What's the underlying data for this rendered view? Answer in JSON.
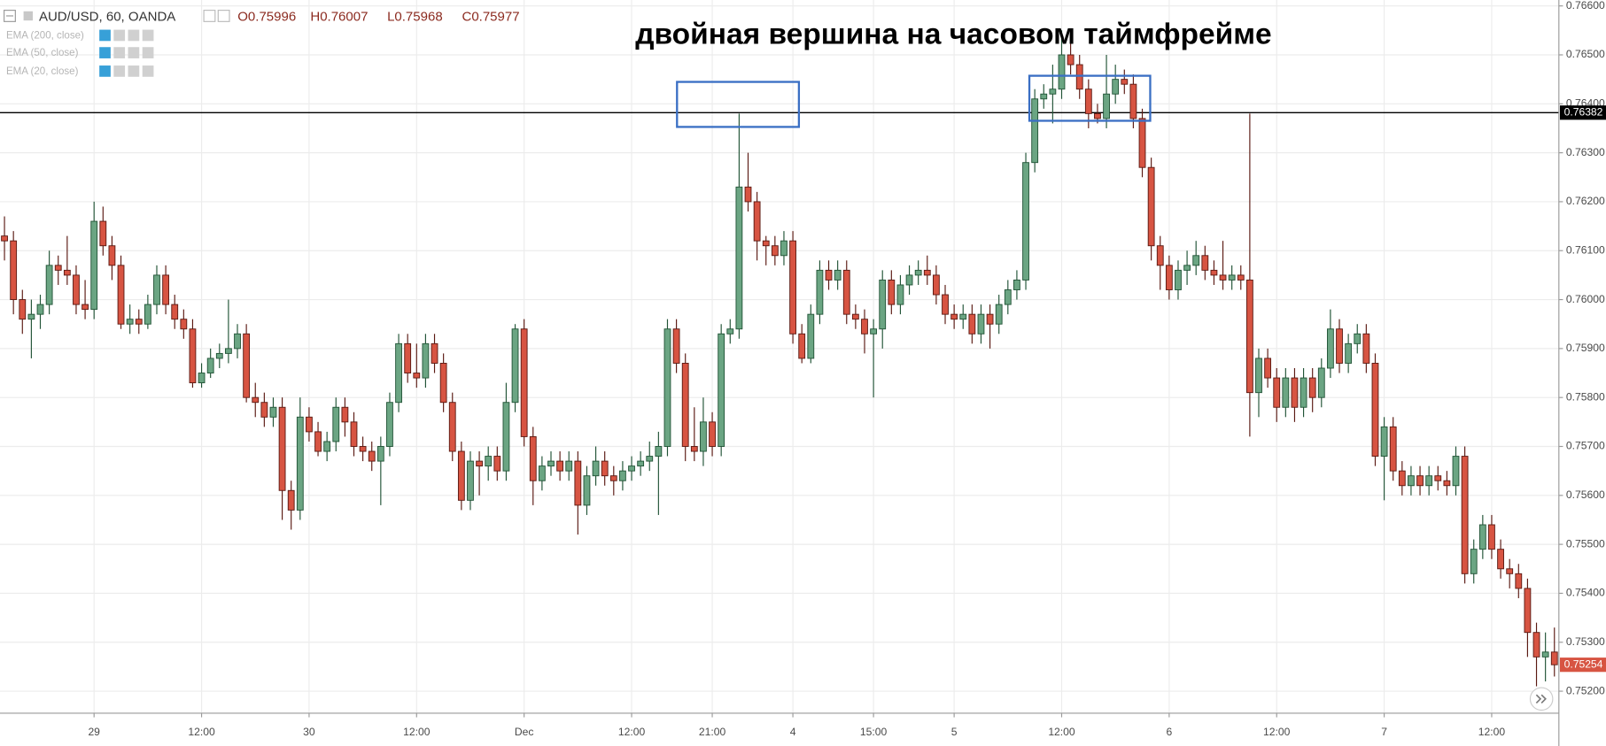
{
  "chart_data": {
    "type": "candlestick",
    "title": "двойная вершина на часовом таймфрейме",
    "header": {
      "symbol": "AUD/USD, 60, OANDA",
      "values": [
        "O0.75996",
        "H0.76007",
        "L0.75968",
        "C0.75977"
      ]
    },
    "indicators": [
      "EMA (200, close)",
      "EMA (50, close)",
      "EMA (20, close)"
    ],
    "categories": [
      null,
      null,
      null,
      null,
      null,
      null,
      null,
      null,
      null,
      null,
      "29",
      null,
      null,
      null,
      null,
      null,
      null,
      null,
      null,
      null,
      null,
      null,
      "12:00",
      null,
      null,
      null,
      null,
      null,
      null,
      null,
      null,
      null,
      null,
      null,
      "30",
      null,
      null,
      null,
      null,
      null,
      null,
      null,
      null,
      null,
      null,
      null,
      "12:00",
      null,
      null,
      null,
      null,
      null,
      null,
      null,
      null,
      null,
      null,
      null,
      "Dec",
      null,
      null,
      null,
      null,
      null,
      null,
      null,
      null,
      null,
      null,
      null,
      "12:00",
      null,
      null,
      null,
      null,
      null,
      null,
      null,
      null,
      "21:00",
      null,
      null,
      null,
      null,
      null,
      null,
      null,
      null,
      "4",
      null,
      null,
      null,
      null,
      null,
      null,
      null,
      null,
      "15:00",
      null,
      null,
      null,
      null,
      null,
      null,
      null,
      null,
      "5",
      null,
      null,
      null,
      null,
      null,
      null,
      null,
      null,
      null,
      null,
      null,
      "12:00",
      null,
      null,
      null,
      null,
      null,
      null,
      null,
      null,
      null,
      null,
      null,
      "6",
      null,
      null,
      null,
      null,
      null,
      null,
      null,
      null,
      null,
      null,
      null,
      "12:00",
      null,
      null,
      null,
      null,
      null,
      null,
      null,
      null,
      null,
      null,
      null,
      "7",
      null,
      null,
      null,
      null,
      null,
      null,
      null,
      null,
      null,
      null,
      null,
      "12:00",
      null,
      null,
      null,
      null,
      null,
      null,
      null
    ],
    "open": [
      0.7613,
      0.7612,
      0.76,
      0.7596,
      0.7597,
      0.7599,
      0.7607,
      0.7606,
      0.7605,
      0.7599,
      0.7598,
      0.7616,
      0.7611,
      0.7607,
      0.7595,
      0.7596,
      0.7595,
      0.7599,
      0.7605,
      0.7599,
      0.7596,
      0.7594,
      0.7583,
      0.7585,
      0.7588,
      0.7589,
      0.759,
      0.7593,
      0.758,
      0.7579,
      0.7576,
      0.7578,
      0.7561,
      0.7557,
      0.7576,
      0.7573,
      0.7569,
      0.7571,
      0.7578,
      0.7575,
      0.757,
      0.7569,
      0.7567,
      0.757,
      0.7579,
      0.7591,
      0.7585,
      0.7584,
      0.7591,
      0.7587,
      0.7579,
      0.7569,
      0.7559,
      0.7567,
      0.7566,
      0.7568,
      0.7565,
      0.7579,
      0.7594,
      0.7572,
      0.7563,
      0.7566,
      0.7567,
      0.7565,
      0.7567,
      0.7558,
      0.7564,
      0.7567,
      0.7564,
      0.7563,
      0.7565,
      0.7566,
      0.7567,
      0.7568,
      0.757,
      0.7594,
      0.7587,
      0.757,
      0.7569,
      0.7575,
      0.757,
      0.7593,
      0.7594,
      0.7623,
      0.762,
      0.7612,
      0.7611,
      0.7609,
      0.7612,
      0.7593,
      0.7588,
      0.7597,
      0.7606,
      0.7604,
      0.7606,
      0.7597,
      0.7596,
      0.7593,
      0.7594,
      0.7604,
      0.7599,
      0.7603,
      0.7605,
      0.7606,
      0.7605,
      0.7601,
      0.7597,
      0.7596,
      0.7597,
      0.7593,
      0.7597,
      0.7595,
      0.7599,
      0.7602,
      0.7604,
      0.7628,
      0.7641,
      0.7642,
      0.7643,
      0.765,
      0.7648,
      0.7643,
      0.7638,
      0.7637,
      0.7642,
      0.7645,
      0.7644,
      0.7637,
      0.7627,
      0.7611,
      0.7607,
      0.7602,
      0.7606,
      0.7607,
      0.7609,
      0.7606,
      0.7605,
      0.7604,
      0.7605,
      0.7604,
      0.7581,
      0.7588,
      0.7584,
      0.7578,
      0.7584,
      0.7578,
      0.7584,
      0.758,
      0.7586,
      0.7594,
      0.7587,
      0.7591,
      0.7593,
      0.7587,
      0.7568,
      0.7574,
      0.7565,
      0.7562,
      0.7564,
      0.7562,
      0.7564,
      0.7563,
      0.7562,
      0.7568,
      0.7544,
      0.7549,
      0.7554,
      0.7549,
      0.7545,
      0.7544,
      0.7541,
      0.7532,
      0.7527,
      0.7528
    ],
    "high": [
      0.7617,
      0.7614,
      0.7602,
      0.76,
      0.7601,
      0.761,
      0.7609,
      0.7613,
      0.7607,
      0.7604,
      0.762,
      0.7619,
      0.7613,
      0.7609,
      0.7599,
      0.7598,
      0.7601,
      0.7607,
      0.7607,
      0.7601,
      0.7598,
      0.7596,
      0.7587,
      0.759,
      0.7591,
      0.76,
      0.7595,
      0.7595,
      0.7583,
      0.7581,
      0.758,
      0.758,
      0.7563,
      0.758,
      0.7578,
      0.7575,
      0.7573,
      0.758,
      0.758,
      0.7577,
      0.7572,
      0.7571,
      0.7572,
      0.7581,
      0.7593,
      0.7593,
      0.7591,
      0.7593,
      0.7593,
      0.7589,
      0.7581,
      0.7571,
      0.7569,
      0.7569,
      0.757,
      0.757,
      0.7583,
      0.7595,
      0.7596,
      0.7574,
      0.7568,
      0.7569,
      0.7569,
      0.7569,
      0.7569,
      0.7566,
      0.757,
      0.7569,
      0.7566,
      0.7567,
      0.7568,
      0.7569,
      0.7571,
      0.7573,
      0.7596,
      0.7596,
      0.7589,
      0.7578,
      0.758,
      0.7577,
      0.7595,
      0.7596,
      0.7638,
      0.763,
      0.7622,
      0.7613,
      0.7613,
      0.7614,
      0.7614,
      0.7595,
      0.7599,
      0.7608,
      0.7608,
      0.7608,
      0.7608,
      0.7599,
      0.7598,
      0.7596,
      0.7606,
      0.7606,
      0.7605,
      0.7607,
      0.7608,
      0.7609,
      0.7607,
      0.7603,
      0.7599,
      0.7599,
      0.7599,
      0.7599,
      0.7599,
      0.7601,
      0.7604,
      0.7606,
      0.763,
      0.7643,
      0.7644,
      0.7648,
      0.7655,
      0.7654,
      0.765,
      0.7645,
      0.764,
      0.765,
      0.7648,
      0.7647,
      0.7646,
      0.7639,
      0.7629,
      0.7613,
      0.7609,
      0.7608,
      0.761,
      0.7612,
      0.7611,
      0.7608,
      0.7612,
      0.7607,
      0.7607,
      0.7638,
      0.759,
      0.759,
      0.7586,
      0.7586,
      0.7586,
      0.7586,
      0.7586,
      0.7588,
      0.7598,
      0.7596,
      0.7593,
      0.7595,
      0.7595,
      0.7589,
      0.7576,
      0.7576,
      0.7567,
      0.7566,
      0.7566,
      0.7566,
      0.7566,
      0.7565,
      0.757,
      0.757,
      0.7551,
      0.7556,
      0.7556,
      0.7551,
      0.7547,
      0.7546,
      0.7543,
      0.7534,
      0.7532,
      0.7533
    ],
    "low": [
      0.7608,
      0.7597,
      0.7593,
      0.7588,
      0.7594,
      0.7597,
      0.7603,
      0.7603,
      0.7597,
      0.7596,
      0.7596,
      0.7609,
      0.7604,
      0.7594,
      0.7593,
      0.7593,
      0.7594,
      0.7597,
      0.7597,
      0.7594,
      0.7592,
      0.7582,
      0.7582,
      0.7584,
      0.7586,
      0.7587,
      0.7588,
      0.7579,
      0.7576,
      0.7574,
      0.7574,
      0.7555,
      0.7553,
      0.7555,
      0.7571,
      0.7568,
      0.7567,
      0.7569,
      0.7572,
      0.7568,
      0.7567,
      0.7565,
      0.7558,
      0.7568,
      0.7577,
      0.7583,
      0.7582,
      0.7582,
      0.7585,
      0.7577,
      0.7567,
      0.7557,
      0.7557,
      0.756,
      0.7563,
      0.7563,
      0.7563,
      0.7577,
      0.757,
      0.7558,
      0.7561,
      0.7564,
      0.7563,
      0.7563,
      0.7552,
      0.7556,
      0.7562,
      0.7562,
      0.756,
      0.7561,
      0.7563,
      0.7564,
      0.7565,
      0.7556,
      0.7568,
      0.7585,
      0.7567,
      0.7567,
      0.7566,
      0.7568,
      0.7568,
      0.7591,
      0.7592,
      0.7618,
      0.7608,
      0.7607,
      0.7607,
      0.7607,
      0.7591,
      0.7587,
      0.7587,
      0.7595,
      0.7602,
      0.7602,
      0.7595,
      0.7594,
      0.7589,
      0.758,
      0.759,
      0.7597,
      0.7597,
      0.7601,
      0.7603,
      0.7603,
      0.7599,
      0.7595,
      0.7594,
      0.7594,
      0.7591,
      0.7591,
      0.759,
      0.7593,
      0.7597,
      0.76,
      0.7602,
      0.7626,
      0.7639,
      0.7636,
      0.7641,
      0.7646,
      0.7641,
      0.7635,
      0.7636,
      0.7635,
      0.764,
      0.7642,
      0.7635,
      0.7625,
      0.7608,
      0.7602,
      0.76,
      0.76,
      0.7603,
      0.7605,
      0.7604,
      0.7603,
      0.7602,
      0.7602,
      0.7602,
      0.7572,
      0.7576,
      0.7582,
      0.7575,
      0.7576,
      0.7575,
      0.7576,
      0.7577,
      0.7578,
      0.7584,
      0.7585,
      0.7585,
      0.7589,
      0.7585,
      0.7566,
      0.7559,
      0.7563,
      0.756,
      0.756,
      0.756,
      0.756,
      0.7561,
      0.756,
      0.756,
      0.7542,
      0.7542,
      0.7547,
      0.7547,
      0.7543,
      0.7541,
      0.7539,
      0.7527,
      0.7521,
      0.7522,
      0.7523
    ],
    "close": [
      0.7612,
      0.76,
      0.7596,
      0.7597,
      0.7599,
      0.7607,
      0.7606,
      0.7605,
      0.7599,
      0.7598,
      0.7616,
      0.7611,
      0.7607,
      0.7595,
      0.7596,
      0.7595,
      0.7599,
      0.7605,
      0.7599,
      0.7596,
      0.7594,
      0.7583,
      0.7585,
      0.7588,
      0.7589,
      0.759,
      0.7593,
      0.758,
      0.7579,
      0.7576,
      0.7578,
      0.7561,
      0.7557,
      0.7576,
      0.7573,
      0.7569,
      0.7571,
      0.7578,
      0.7575,
      0.757,
      0.7569,
      0.7567,
      0.757,
      0.7579,
      0.7591,
      0.7585,
      0.7584,
      0.7591,
      0.7587,
      0.7579,
      0.7569,
      0.7559,
      0.7567,
      0.7566,
      0.7568,
      0.7565,
      0.7579,
      0.7594,
      0.7572,
      0.7563,
      0.7566,
      0.7567,
      0.7565,
      0.7567,
      0.7558,
      0.7564,
      0.7567,
      0.7564,
      0.7563,
      0.7565,
      0.7566,
      0.7567,
      0.7568,
      0.757,
      0.7594,
      0.7587,
      0.757,
      0.7569,
      0.7575,
      0.757,
      0.7593,
      0.7594,
      0.7623,
      0.762,
      0.7612,
      0.7611,
      0.7609,
      0.7612,
      0.7593,
      0.7588,
      0.7597,
      0.7606,
      0.7604,
      0.7606,
      0.7597,
      0.7596,
      0.7593,
      0.7594,
      0.7604,
      0.7599,
      0.7603,
      0.7605,
      0.7606,
      0.7605,
      0.7601,
      0.7597,
      0.7596,
      0.7597,
      0.7593,
      0.7597,
      0.7595,
      0.7599,
      0.7602,
      0.7604,
      0.7628,
      0.7641,
      0.7642,
      0.7643,
      0.765,
      0.7648,
      0.7643,
      0.7638,
      0.7637,
      0.7642,
      0.7645,
      0.7644,
      0.7637,
      0.7627,
      0.7611,
      0.7607,
      0.7602,
      0.7606,
      0.7607,
      0.7609,
      0.7606,
      0.7605,
      0.7604,
      0.7605,
      0.7604,
      0.7581,
      0.7588,
      0.7584,
      0.7578,
      0.7584,
      0.7578,
      0.7584,
      0.758,
      0.7586,
      0.7594,
      0.7587,
      0.7591,
      0.7593,
      0.7587,
      0.7568,
      0.7574,
      0.7565,
      0.7562,
      0.7564,
      0.7562,
      0.7564,
      0.7563,
      0.7562,
      0.7568,
      0.7544,
      0.7549,
      0.7554,
      0.7549,
      0.7545,
      0.7544,
      0.7541,
      0.7532,
      0.7527,
      0.7528,
      0.75254
    ],
    "colors": {
      "up": "#6ba583",
      "down": "#d75442",
      "up_border": "#225437",
      "down_border": "#5b1a13"
    },
    "ylim": [
      0.75155,
      0.76612
    ],
    "yticks": [
      {
        "value": 0.752,
        "label": "0.75200"
      },
      {
        "value": 0.753,
        "label": "0.75300"
      },
      {
        "value": 0.754,
        "label": "0.75400"
      },
      {
        "value": 0.755,
        "label": "0.75500"
      },
      {
        "value": 0.756,
        "label": "0.75600"
      },
      {
        "value": 0.757,
        "label": "0.75700"
      },
      {
        "value": 0.758,
        "label": "0.75800"
      },
      {
        "value": 0.759,
        "label": "0.75900"
      },
      {
        "value": 0.76,
        "label": "0.76000"
      },
      {
        "value": 0.761,
        "label": "0.76100"
      },
      {
        "value": 0.762,
        "label": "0.76200"
      },
      {
        "value": 0.763,
        "label": "0.76300"
      },
      {
        "value": 0.764,
        "label": "0.76400"
      },
      {
        "value": 0.765,
        "label": "0.76500"
      },
      {
        "value": 0.766,
        "label": "0.76600"
      }
    ],
    "grid": true,
    "hline": {
      "value": 0.76382,
      "color": "#000000"
    }
  }
}
